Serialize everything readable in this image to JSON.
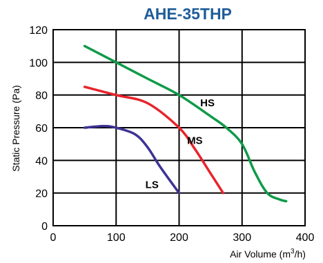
{
  "chart_data": {
    "type": "line",
    "title": "AHE-35THP",
    "xlabel": "Air Volume (m³/h)",
    "xlabel_base": "Air Volume (m",
    "xlabel_sup": "3",
    "xlabel_end": "/h)",
    "ylabel": "Static Pressure (Pa)",
    "xlim": [
      0,
      400
    ],
    "ylim": [
      0,
      120
    ],
    "xticks": [
      "0",
      "100",
      "200",
      "300",
      "400"
    ],
    "yticks": [
      "0",
      "20",
      "40",
      "60",
      "80",
      "100",
      "120"
    ],
    "grid": true,
    "colors": {
      "title": "#1f5c99",
      "HS": "#0e9a48",
      "MS": "#e8232b",
      "LS": "#3c3293"
    },
    "series": [
      {
        "name": "HS",
        "x": [
          50,
          100,
          150,
          200,
          250,
          275,
          300,
          320,
          340,
          360,
          370
        ],
        "y": [
          110,
          100,
          90,
          80,
          67,
          60,
          50,
          33,
          20,
          16,
          15
        ]
      },
      {
        "name": "MS",
        "x": [
          50,
          100,
          150,
          200,
          225,
          250,
          270
        ],
        "y": [
          85,
          80,
          75,
          60,
          47,
          32,
          20
        ]
      },
      {
        "name": "LS",
        "x": [
          50,
          80,
          100,
          130,
          150,
          170,
          200
        ],
        "y": [
          60,
          61,
          60,
          56,
          48,
          36,
          20
        ]
      }
    ]
  }
}
